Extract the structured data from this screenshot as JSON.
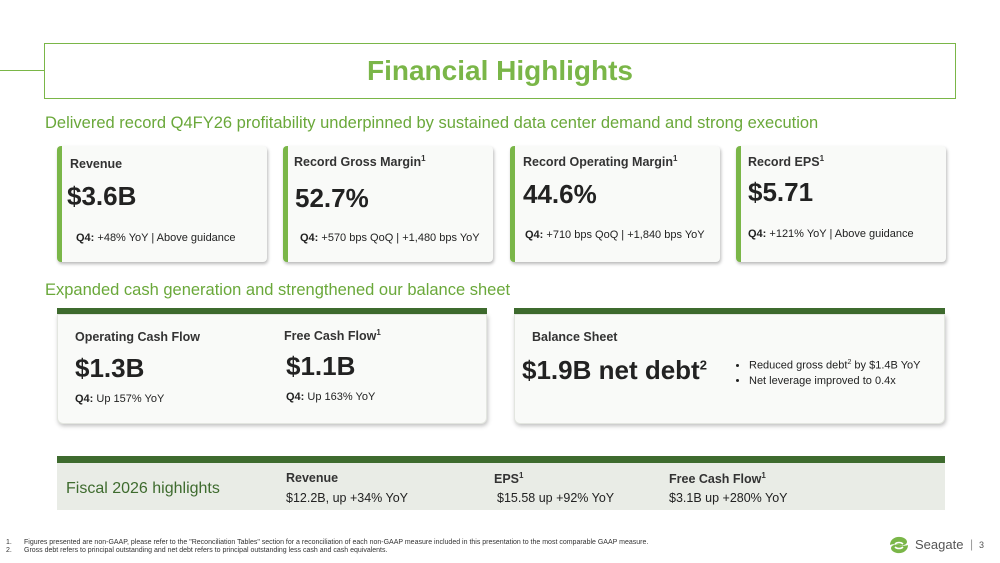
{
  "title": "Financial Highlights",
  "subtitle1": "Delivered record Q4FY26 profitability underpinned by sustained data center demand and strong execution",
  "cards": [
    {
      "label": "Revenue",
      "sup": "",
      "value": "$3.6B",
      "note_prefix": "Q4:",
      "note": " +48% YoY | Above guidance"
    },
    {
      "label": "Record Gross Margin",
      "sup": "1",
      "value": "52.7%",
      "note_prefix": "Q4:",
      "note": " +570 bps QoQ | +1,480 bps YoY"
    },
    {
      "label": "Record Operating Margin",
      "sup": "1",
      "value": "44.6%",
      "note_prefix": "Q4:",
      "note": " +710 bps QoQ | +1,840 bps YoY"
    },
    {
      "label": "Record EPS",
      "sup": "1",
      "value": "$5.71",
      "note_prefix": "Q4:",
      "note": " +121% YoY | Above guidance"
    }
  ],
  "subtitle2": "Expanded cash generation and strengthened our balance sheet",
  "cash": {
    "ocf_label": "Operating Cash Flow",
    "ocf_value": "$1.3B",
    "ocf_note_prefix": "Q4:",
    "ocf_note": " Up 157% YoY",
    "fcf_label": "Free Cash Flow",
    "fcf_sup": "1",
    "fcf_value": "$1.1B",
    "fcf_note_prefix": "Q4:",
    "fcf_note": " Up 163% YoY"
  },
  "balance": {
    "label": "Balance Sheet",
    "value": "$1.9B net debt",
    "value_sup": "2",
    "bullet1_a": "Reduced gross debt",
    "bullet1_sup": "2",
    "bullet1_b": " by $1.4B YoY",
    "bullet2": "Net leverage improved to 0.4x"
  },
  "fiscal": {
    "title": "Fiscal 2026 highlights",
    "revenue_label": "Revenue",
    "revenue_value": "$12.2B, up +34% YoY",
    "eps_label": "EPS",
    "eps_sup": "1",
    "eps_value": "$15.58 up +92% YoY",
    "fcf_label": "Free Cash Flow",
    "fcf_sup": "1",
    "fcf_value": "$3.1B up +280% YoY"
  },
  "footnotes": {
    "n1": "1.",
    "f1": "Figures presented are non-GAAP, please refer to the \"Reconciliation Tables\" section for a reconciliation of each non-GAAP measure included in this presentation to the most comparable GAAP measure.",
    "n2": "2.",
    "f2": "Gross debt refers to principal outstanding and net debt refers to principal outstanding less cash and cash equivalents."
  },
  "brand": {
    "name": "Seagate",
    "separator": "|",
    "page": "3",
    "icon": "seagate-swirl-icon",
    "accent": "#7ab648",
    "dark_green": "#3e6b2e"
  }
}
